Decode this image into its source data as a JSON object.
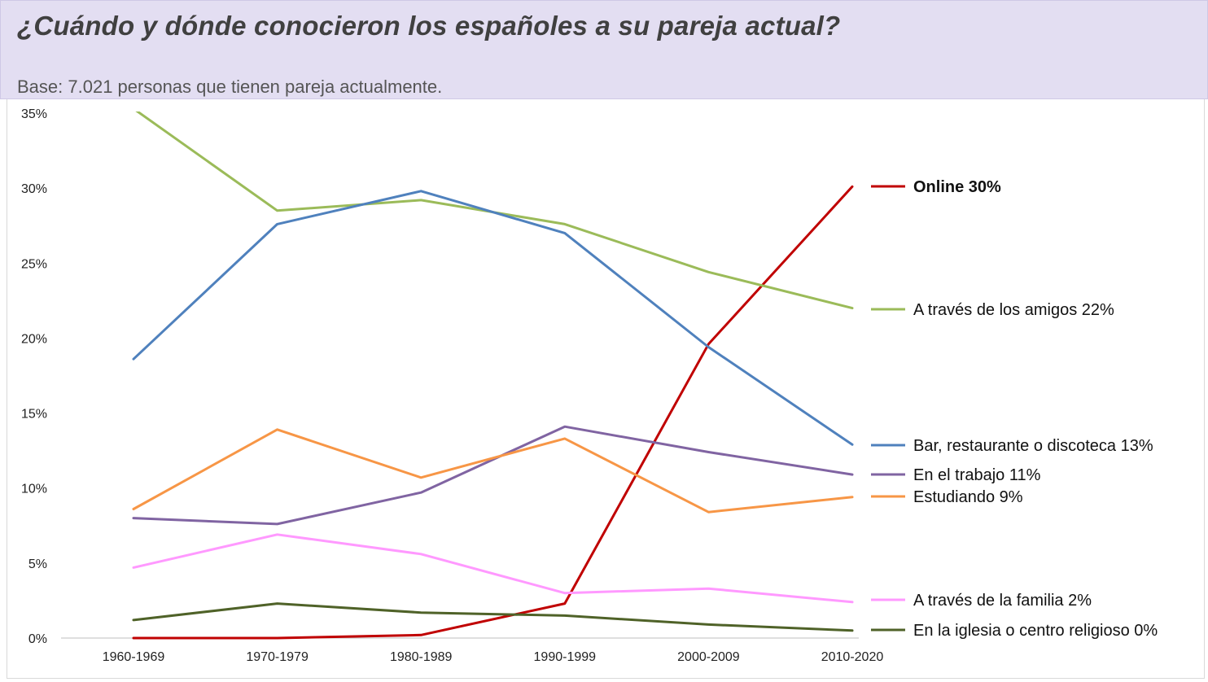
{
  "header": {
    "title": "¿Cuándo y dónde conocieron los españoles a su pareja actual?",
    "subtitle": "Base: 7.021 personas que tienen pareja actualmente."
  },
  "chart_data": {
    "type": "line",
    "title": "¿Cuándo y dónde conocieron los españoles a su pareja actual?",
    "subtitle": "Base: 7.021 personas que tienen pareja actualmente.",
    "xlabel": "",
    "ylabel": "",
    "categories": [
      "1960-1969",
      "1970-1979",
      "1980-1989",
      "1990-1999",
      "2000-2009",
      "2010-2020"
    ],
    "ylim": [
      0,
      35
    ],
    "yticks": [
      0,
      5,
      10,
      15,
      20,
      25,
      30,
      35
    ],
    "ytick_labels": [
      "0%",
      "5%",
      "10%",
      "15%",
      "20%",
      "25%",
      "30%",
      "35%"
    ],
    "grid": false,
    "legend": "right",
    "series": [
      {
        "key": "online",
        "name": "Online 30%",
        "color": "#c00000",
        "bold": true,
        "values": [
          0,
          0,
          0.2,
          2.3,
          19.6,
          30.1
        ]
      },
      {
        "key": "amigos",
        "name": "A través de los amigos 22%",
        "color": "#9bbb59",
        "bold": false,
        "values": [
          35.3,
          28.5,
          29.2,
          27.6,
          24.4,
          22.0
        ]
      },
      {
        "key": "bar",
        "name": "Bar, restaurante o discoteca 13%",
        "color": "#4f81bd",
        "bold": false,
        "values": [
          18.6,
          27.6,
          29.8,
          27.0,
          19.4,
          12.9
        ]
      },
      {
        "key": "trabajo",
        "name": "En el trabajo 11%",
        "color": "#8064a2",
        "bold": false,
        "values": [
          8.0,
          7.6,
          9.7,
          14.1,
          12.4,
          10.9
        ]
      },
      {
        "key": "estudiando",
        "name": "Estudiando 9%",
        "color": "#f79646",
        "bold": false,
        "values": [
          8.6,
          13.9,
          10.7,
          13.3,
          8.4,
          9.4
        ]
      },
      {
        "key": "familia",
        "name": "A través de la familia 2%",
        "color": "#ff99ff",
        "bold": false,
        "values": [
          4.7,
          6.9,
          5.6,
          3.0,
          3.3,
          2.4
        ]
      },
      {
        "key": "iglesia",
        "name": "En la iglesia o centro religioso 0%",
        "color": "#4f6228",
        "bold": false,
        "values": [
          1.2,
          2.3,
          1.7,
          1.5,
          0.9,
          0.5
        ]
      }
    ]
  }
}
